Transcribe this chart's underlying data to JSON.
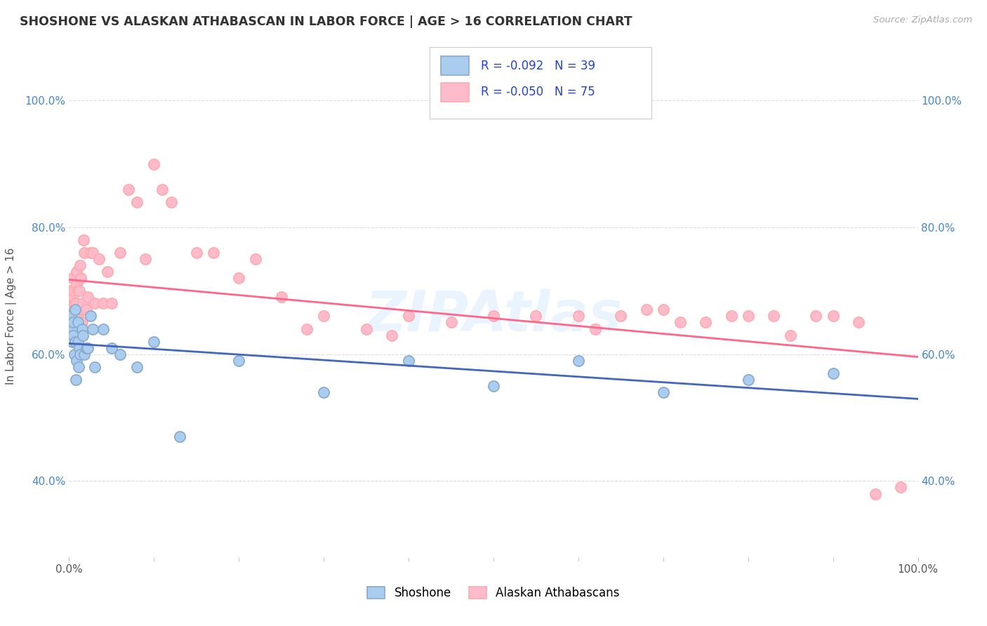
{
  "title": "SHOSHONE VS ALASKAN ATHABASCAN IN LABOR FORCE | AGE > 16 CORRELATION CHART",
  "source": "Source: ZipAtlas.com",
  "ylabel": "In Labor Force | Age > 16",
  "legend_labels": [
    "Shoshone",
    "Alaskan Athabascans"
  ],
  "shoshone_marker_face": "#AACCEE",
  "shoshone_marker_edge": "#88AACC",
  "alaskan_marker_face": "#FFBBCC",
  "alaskan_marker_edge": "#FFAAAA",
  "trendline_shoshone": "#4466BB",
  "trendline_alaskan": "#FF6688",
  "watermark": "ZIPAtlas",
  "legend_r_shoshone": "-0.092",
  "legend_n_shoshone": "39",
  "legend_r_alaskan": "-0.050",
  "legend_n_alaskan": "75",
  "shoshone_x": [
    0.001,
    0.002,
    0.003,
    0.004,
    0.004,
    0.005,
    0.005,
    0.006,
    0.007,
    0.007,
    0.008,
    0.009,
    0.01,
    0.01,
    0.011,
    0.012,
    0.013,
    0.015,
    0.016,
    0.018,
    0.02,
    0.022,
    0.025,
    0.028,
    0.03,
    0.04,
    0.05,
    0.06,
    0.08,
    0.1,
    0.13,
    0.2,
    0.3,
    0.4,
    0.5,
    0.6,
    0.7,
    0.8,
    0.9
  ],
  "shoshone_y": [
    0.65,
    0.66,
    0.64,
    0.64,
    0.62,
    0.65,
    0.63,
    0.6,
    0.62,
    0.67,
    0.56,
    0.59,
    0.62,
    0.65,
    0.58,
    0.61,
    0.6,
    0.64,
    0.63,
    0.6,
    0.61,
    0.61,
    0.66,
    0.64,
    0.58,
    0.64,
    0.61,
    0.6,
    0.58,
    0.62,
    0.47,
    0.59,
    0.54,
    0.59,
    0.55,
    0.59,
    0.54,
    0.56,
    0.57
  ],
  "alaskan_x": [
    0.001,
    0.002,
    0.002,
    0.003,
    0.003,
    0.004,
    0.004,
    0.004,
    0.005,
    0.005,
    0.005,
    0.006,
    0.006,
    0.007,
    0.007,
    0.008,
    0.008,
    0.009,
    0.009,
    0.01,
    0.01,
    0.011,
    0.012,
    0.013,
    0.014,
    0.015,
    0.015,
    0.016,
    0.017,
    0.018,
    0.02,
    0.022,
    0.025,
    0.028,
    0.03,
    0.035,
    0.04,
    0.045,
    0.05,
    0.06,
    0.07,
    0.08,
    0.09,
    0.1,
    0.11,
    0.12,
    0.15,
    0.17,
    0.2,
    0.22,
    0.25,
    0.28,
    0.3,
    0.35,
    0.38,
    0.4,
    0.45,
    0.5,
    0.55,
    0.6,
    0.62,
    0.65,
    0.68,
    0.7,
    0.72,
    0.75,
    0.78,
    0.8,
    0.83,
    0.85,
    0.88,
    0.9,
    0.93,
    0.95,
    0.98
  ],
  "alaskan_y": [
    0.68,
    0.66,
    0.7,
    0.67,
    0.65,
    0.66,
    0.69,
    0.72,
    0.64,
    0.66,
    0.7,
    0.66,
    0.67,
    0.65,
    0.68,
    0.64,
    0.68,
    0.73,
    0.71,
    0.66,
    0.7,
    0.67,
    0.7,
    0.74,
    0.72,
    0.67,
    0.65,
    0.68,
    0.78,
    0.76,
    0.67,
    0.69,
    0.76,
    0.76,
    0.68,
    0.75,
    0.68,
    0.73,
    0.68,
    0.76,
    0.86,
    0.84,
    0.75,
    0.9,
    0.86,
    0.84,
    0.76,
    0.76,
    0.72,
    0.75,
    0.69,
    0.64,
    0.66,
    0.64,
    0.63,
    0.66,
    0.65,
    0.66,
    0.66,
    0.66,
    0.64,
    0.66,
    0.67,
    0.67,
    0.65,
    0.65,
    0.66,
    0.66,
    0.66,
    0.63,
    0.66,
    0.66,
    0.65,
    0.38,
    0.39
  ],
  "xlim": [
    0.0,
    1.0
  ],
  "ylim": [
    0.28,
    1.04
  ],
  "xticks_pos": [
    0.0,
    1.0
  ],
  "xticklabels": [
    "0.0%",
    "100.0%"
  ],
  "yticks": [
    0.4,
    0.6,
    0.8,
    1.0
  ],
  "yticklabels": [
    "40.0%",
    "60.0%",
    "80.0%",
    "100.0%"
  ],
  "grid_color": "#DDDDDD",
  "background_color": "#FFFFFF",
  "marker_size": 120,
  "marker_edge_width": 1.2
}
